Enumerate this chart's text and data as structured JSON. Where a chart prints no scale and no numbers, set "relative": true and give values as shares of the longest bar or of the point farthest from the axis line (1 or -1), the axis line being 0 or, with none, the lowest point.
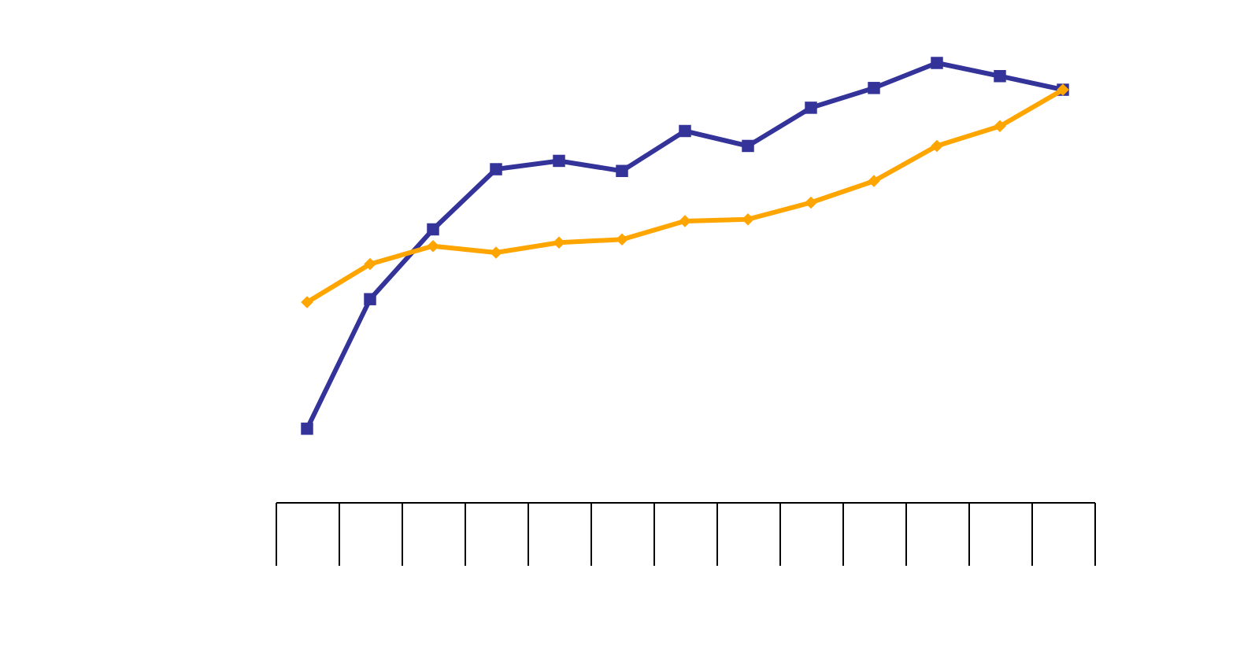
{
  "chart_data": {
    "type": "line",
    "relative": true,
    "categories": [
      null,
      null,
      null,
      null,
      null,
      null,
      null,
      null,
      null,
      null,
      null,
      null,
      null
    ],
    "series": [
      {
        "color": "#333399",
        "marker": "square",
        "values": [
          0.167,
          0.462,
          0.621,
          0.758,
          0.777,
          0.754,
          0.845,
          0.811,
          0.898,
          0.943,
          1,
          0.97,
          0.939
        ]
      },
      {
        "color": "#ffa500",
        "marker": "diamond",
        "values": [
          0.455,
          0.542,
          0.583,
          0.568,
          0.591,
          0.598,
          0.64,
          0.644,
          0.682,
          0.731,
          0.811,
          0.856,
          0.939
        ]
      }
    ]
  }
}
